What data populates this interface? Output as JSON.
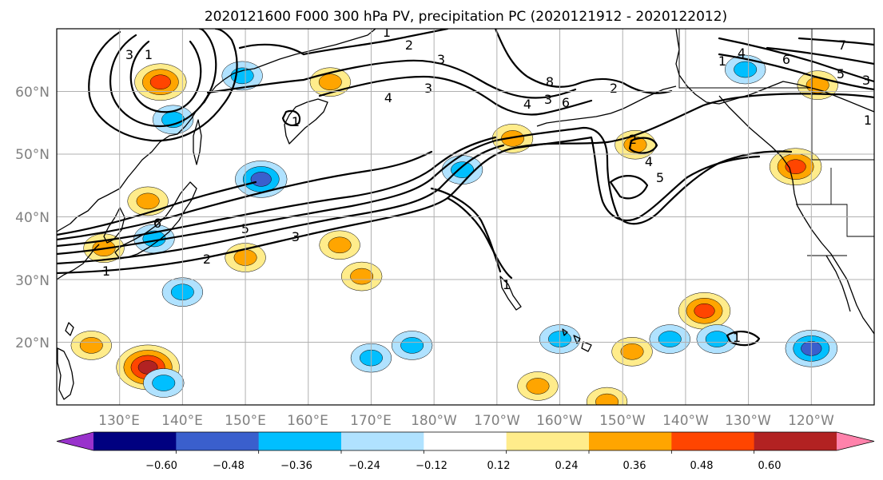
{
  "chart_data": {
    "type": "contour-map",
    "title": "2020121600 F000 300 hPa PV, precipitation PC (2020121912 - 2020122012)",
    "lat_ticks": [
      "20°N",
      "30°N",
      "40°N",
      "50°N",
      "60°N"
    ],
    "lon_ticks": [
      "130°E",
      "140°E",
      "150°E",
      "160°E",
      "170°E",
      "180°W",
      "170°W",
      "160°W",
      "150°W",
      "140°W",
      "130°W",
      "120°W"
    ],
    "lat_range": [
      10,
      70
    ],
    "lon_range": [
      120,
      250
    ],
    "grid": true,
    "pv_contour_levels": [
      1,
      2,
      3,
      4,
      5,
      6,
      7,
      8
    ],
    "colorbar": {
      "extend": "both",
      "tick_labels": [
        "−0.60",
        "−0.48",
        "−0.36",
        "−0.24",
        "−0.12",
        "0.12",
        "0.24",
        "0.36",
        "0.48",
        "0.60"
      ],
      "bin_edges": [
        -0.6,
        -0.48,
        -0.36,
        -0.24,
        -0.12,
        0.12,
        0.24,
        0.36,
        0.48,
        0.6
      ],
      "colors": [
        "#9932cc",
        "#000080",
        "#3a5fcd",
        "#00bfff",
        "#b0e2ff",
        "#ffffff",
        "#ffec8b",
        "#ffa500",
        "#ff4500",
        "#b22222",
        "#ff82ab"
      ]
    },
    "pc_regions": [
      {
        "lon": 136.5,
        "lat": 61.5,
        "value": 0.4
      },
      {
        "lon": 149.5,
        "lat": 62.5,
        "value": -0.3
      },
      {
        "lon": 138.5,
        "lat": 55.5,
        "value": -0.3
      },
      {
        "lon": 163.5,
        "lat": 61.5,
        "value": 0.3
      },
      {
        "lon": 152.5,
        "lat": 46.0,
        "value": -0.45
      },
      {
        "lon": 134.5,
        "lat": 42.5,
        "value": 0.3
      },
      {
        "lon": 135.5,
        "lat": 36.5,
        "value": -0.3
      },
      {
        "lon": 127.5,
        "lat": 35.0,
        "value": 0.3
      },
      {
        "lon": 150.0,
        "lat": 33.5,
        "value": 0.3
      },
      {
        "lon": 165.0,
        "lat": 35.5,
        "value": 0.3
      },
      {
        "lon": 168.5,
        "lat": 30.5,
        "value": 0.3
      },
      {
        "lon": 140.0,
        "lat": 28.0,
        "value": -0.3
      },
      {
        "lon": 134.5,
        "lat": 16.0,
        "value": 0.5
      },
      {
        "lon": 125.5,
        "lat": 19.5,
        "value": 0.3
      },
      {
        "lon": 137.0,
        "lat": 13.5,
        "value": -0.3
      },
      {
        "lon": 176.5,
        "lat": 19.5,
        "value": -0.3
      },
      {
        "lon": 170.0,
        "lat": 17.5,
        "value": -0.3
      },
      {
        "lon": 184.5,
        "lat": 47.5,
        "value": -0.3
      },
      {
        "lon": 192.5,
        "lat": 52.5,
        "value": 0.3
      },
      {
        "lon": 212.0,
        "lat": 51.5,
        "value": 0.3
      },
      {
        "lon": 237.5,
        "lat": 48.0,
        "value": 0.45
      },
      {
        "lon": 229.5,
        "lat": 63.5,
        "value": -0.3
      },
      {
        "lon": 241.0,
        "lat": 61.0,
        "value": 0.3
      },
      {
        "lon": 223.0,
        "lat": 25.0,
        "value": 0.4
      },
      {
        "lon": 225.0,
        "lat": 20.5,
        "value": -0.3
      },
      {
        "lon": 211.5,
        "lat": 18.5,
        "value": 0.3
      },
      {
        "lon": 240.0,
        "lat": 19.0,
        "value": -0.45
      },
      {
        "lon": 200.0,
        "lat": 20.5,
        "value": -0.3
      },
      {
        "lon": 217.5,
        "lat": 20.5,
        "value": -0.3
      },
      {
        "lon": 196.5,
        "lat": 13.0,
        "value": 0.3
      },
      {
        "lon": 207.5,
        "lat": 10.5,
        "value": 0.3
      }
    ]
  }
}
